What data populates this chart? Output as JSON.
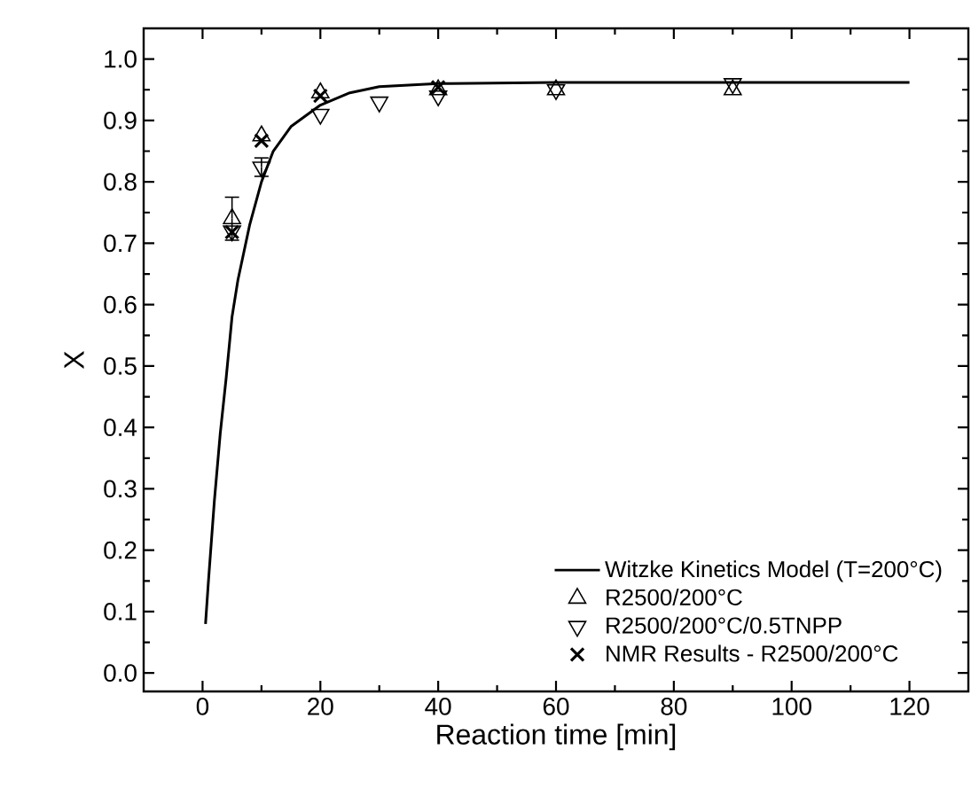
{
  "chart_data": {
    "type": "scatter",
    "xlabel": "Reaction time [min]",
    "ylabel": "X",
    "xlim": [
      -10,
      130
    ],
    "ylim": [
      -0.03,
      1.05
    ],
    "xticks": [
      0,
      20,
      40,
      60,
      80,
      100,
      120
    ],
    "yticks": [
      {
        "value": 0.0,
        "label": "0.0"
      },
      {
        "value": 0.1,
        "label": "0.1"
      },
      {
        "value": 0.2,
        "label": "0.2"
      },
      {
        "value": 0.3,
        "label": "0.3"
      },
      {
        "value": 0.4,
        "label": "0.4"
      },
      {
        "value": 0.5,
        "label": "0.5"
      },
      {
        "value": 0.6,
        "label": "0.6"
      },
      {
        "value": 0.7,
        "label": "0.7"
      },
      {
        "value": 0.8,
        "label": "0.8"
      },
      {
        "value": 0.9,
        "label": "0.9"
      },
      {
        "value": 1.0,
        "label": "1.0"
      }
    ],
    "legend": "bottom right",
    "grid": false,
    "series": [
      {
        "name": "Witzke Kinetics Model (T=200°C)",
        "type": "line",
        "marker": "none",
        "line_style": "solid",
        "color": "#000000",
        "x": [
          0.5,
          1,
          2,
          3,
          4,
          5,
          6,
          8,
          10,
          12,
          15,
          20,
          25,
          30,
          40,
          60,
          120
        ],
        "values": [
          0.08,
          0.15,
          0.28,
          0.39,
          0.48,
          0.58,
          0.64,
          0.73,
          0.8,
          0.85,
          0.89,
          0.925,
          0.945,
          0.955,
          0.96,
          0.962,
          0.962
        ]
      },
      {
        "name": "R2500/200°C",
        "marker": "triangle",
        "color": "#000000",
        "x": [
          5,
          10,
          20,
          40,
          60,
          90
        ],
        "values": [
          0.74,
          0.875,
          0.945,
          0.95,
          0.95,
          0.95
        ],
        "errors": [
          0.035,
          null,
          null,
          null,
          null,
          null
        ]
      },
      {
        "name": "R2500/200°C/0.5TNPP",
        "marker": "triangle-down",
        "color": "#000000",
        "x": [
          5,
          10,
          20,
          30,
          40,
          60,
          90
        ],
        "values": [
          0.72,
          0.824,
          0.91,
          0.93,
          0.94,
          0.95,
          0.96
        ],
        "errors": [
          null,
          0.015,
          null,
          null,
          null,
          null,
          null
        ]
      },
      {
        "name": "NMR Results - R2500/200°C",
        "marker": "cross",
        "color": "#000000",
        "x": [
          5,
          10,
          20,
          40
        ],
        "values": [
          0.718,
          0.867,
          0.94,
          0.954
        ]
      }
    ]
  }
}
